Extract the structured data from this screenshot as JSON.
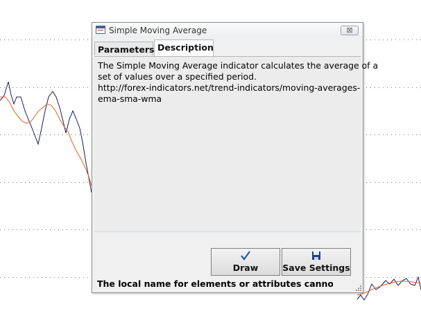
{
  "background_chart": {
    "series_colors": {
      "price": "#1a1a5e",
      "sma": "#e0631d",
      "grid": "#000000"
    }
  },
  "dialog": {
    "title": "Simple Moving Average",
    "close_symbol": "⊠",
    "tabs": [
      {
        "label": "Parameters",
        "active": false
      },
      {
        "label": "Description",
        "active": true
      }
    ],
    "description_lines": [
      "The Simple Moving Average indicator calculates the average of a",
      "set of values over a specified period.",
      "http://forex-indicators.net/trend-indicators/moving-averages-",
      "ema-sma-wma"
    ],
    "buttons": {
      "draw": {
        "label": "Draw",
        "icon": "checkmark-icon",
        "icon_color": "#1f5aa6"
      },
      "save": {
        "label": "Save Settings",
        "icon": "floppy-disk-icon",
        "icon_color": "#1f3f8a"
      }
    },
    "status_text": "The local name for elements or attributes cannot be nu"
  }
}
